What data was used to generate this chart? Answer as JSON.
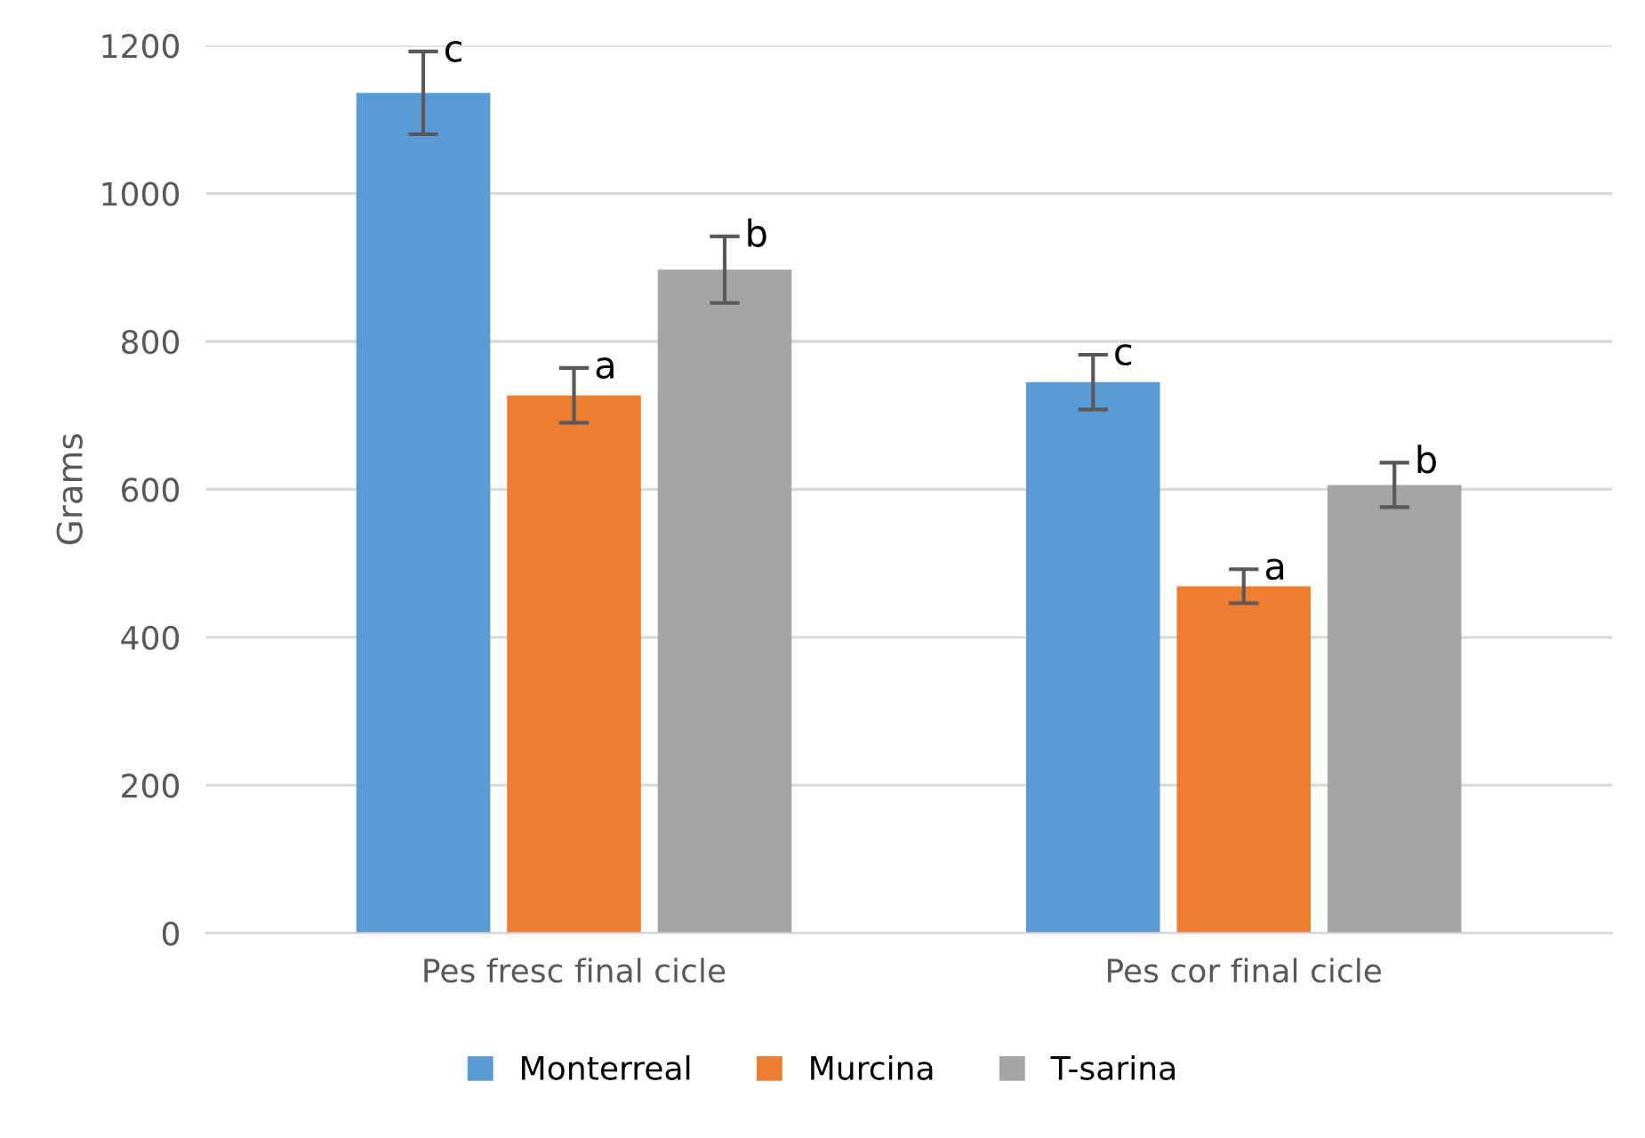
{
  "chart_data": {
    "type": "bar",
    "ylabel": "Grams",
    "categories": [
      "Pes fresc final cicle",
      "Pes cor final cicle"
    ],
    "series": [
      {
        "name": "Monterreal",
        "color": "#5b9bd5",
        "values": [
          1136,
          745
        ],
        "errors": [
          56,
          37
        ],
        "value_labels": [
          "c",
          "c"
        ]
      },
      {
        "name": "Murcina",
        "color": "#ed7d31",
        "values": [
          727,
          469
        ],
        "errors": [
          37,
          23
        ],
        "value_labels": [
          "a",
          "a"
        ]
      },
      {
        "name": "T-sarina",
        "color": "#a5a5a5",
        "values": [
          897,
          606
        ],
        "errors": [
          45,
          30
        ],
        "value_labels": [
          "b",
          "b"
        ]
      }
    ],
    "ylim": [
      0,
      1200
    ],
    "yticks": [
      0,
      200,
      400,
      600,
      800,
      1000,
      1200
    ],
    "grid": "y",
    "legend": "bottom"
  }
}
